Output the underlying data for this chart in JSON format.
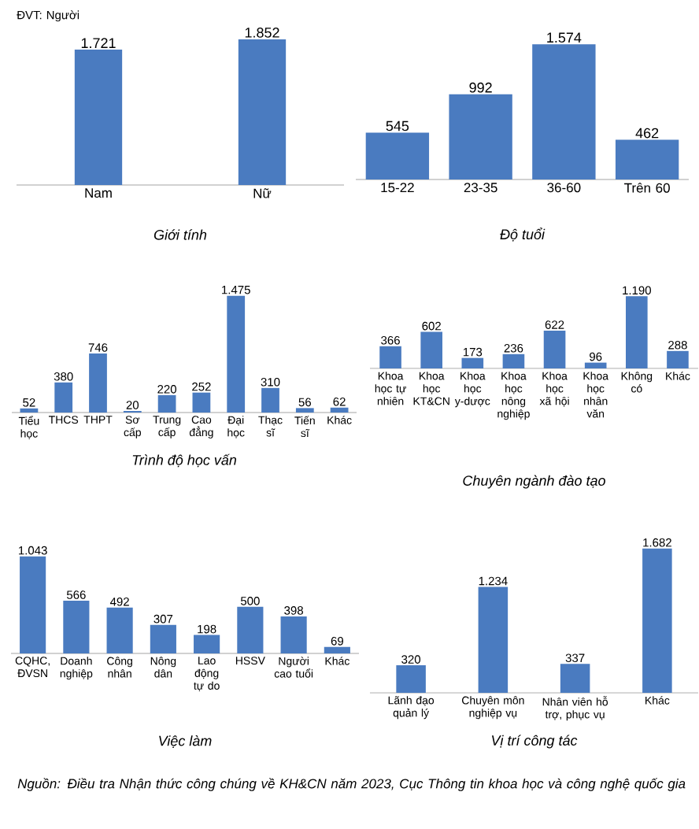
{
  "chart_data": [
    {
      "type": "bar",
      "title": "Giới tính",
      "categories": [
        "Nam",
        "Nữ"
      ],
      "values": [
        1721,
        1852
      ],
      "value_labels": [
        "1.721",
        "1.852"
      ],
      "color": "#4a7bc0",
      "annotations": [
        "ĐVT: Người"
      ]
    },
    {
      "type": "bar",
      "title": "Độ tuổi",
      "categories": [
        "15-22",
        "23-35",
        "36-60",
        "Trên 60"
      ],
      "values": [
        545,
        992,
        1574,
        462
      ],
      "value_labels": [
        "545",
        "992",
        "1.574",
        "462"
      ],
      "color": "#4a7bc0"
    },
    {
      "type": "bar",
      "title": "Trình độ học vấn",
      "categories": [
        "Tiểu học",
        "THCS",
        "THPT",
        "Sơ cấp",
        "Trung cấp",
        "Cao đẳng",
        "Đại học",
        "Thạc sĩ",
        "Tiến sĩ",
        "Khác"
      ],
      "values": [
        52,
        380,
        746,
        20,
        220,
        252,
        1475,
        310,
        56,
        62
      ],
      "value_labels": [
        "52",
        "380",
        "746",
        "20",
        "220",
        "252",
        "1.475",
        "310",
        "56",
        "62"
      ],
      "color": "#4a7bc0"
    },
    {
      "type": "bar",
      "title": "Chuyên ngành đào tạo",
      "categories": [
        "Khoa học tự nhiên",
        "Khoa học KT&CN",
        "Khoa học y-dược",
        "Khoa học nông nghiệp",
        "Khoa học xã hội",
        "Khoa học nhân văn",
        "Không có",
        "Khác"
      ],
      "values": [
        366,
        602,
        173,
        236,
        622,
        96,
        1190,
        288
      ],
      "value_labels": [
        "366",
        "602",
        "173",
        "236",
        "622",
        "96",
        "1.190",
        "288"
      ],
      "color": "#4a7bc0"
    },
    {
      "type": "bar",
      "title": "Việc làm",
      "categories": [
        "CQHC, ĐVSN",
        "Doanh nghiệp",
        "Công nhân",
        "Nông dân",
        "Lao động tự do",
        "HSSV",
        "Người cao tuổi",
        "Khác"
      ],
      "values": [
        1043,
        566,
        492,
        307,
        198,
        500,
        398,
        69
      ],
      "value_labels": [
        "1.043",
        "566",
        "492",
        "307",
        "198",
        "500",
        "398",
        "69"
      ],
      "color": "#4a7bc0"
    },
    {
      "type": "bar",
      "title": "Vị trí công tác",
      "categories": [
        "Lãnh đạo quản lý",
        "Chuyên môn nghiệp vụ",
        "Nhân viên hỗ trợ, phục vụ",
        "Khác"
      ],
      "values": [
        320,
        1234,
        337,
        1682
      ],
      "value_labels": [
        "320",
        "1.234",
        "337",
        "1.682"
      ],
      "color": "#4a7bc0",
      "annotations": [
        "Nguồn: Điều tra Nhận thức công chúng về KH&CN năm 2023, Cục Thông tin khoa học và công nghệ quốc gia"
      ]
    }
  ]
}
